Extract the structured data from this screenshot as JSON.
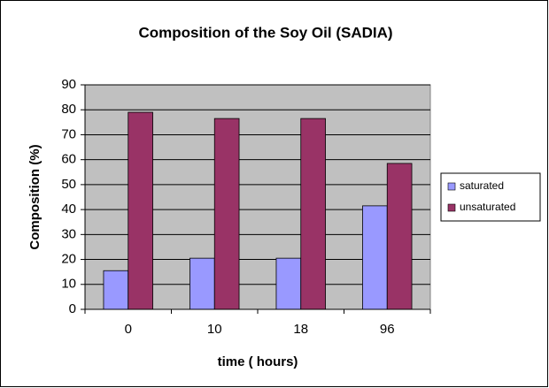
{
  "chart_data": {
    "type": "bar",
    "title": "Composition of the Soy Oil (SADIA)",
    "x_label": "time ( hours)",
    "y_label": "Composition (%)",
    "categories": [
      "0",
      "10",
      "18",
      "96"
    ],
    "series": [
      {
        "name": "saturated",
        "color": "#9999ff",
        "values": [
          15.5,
          20.5,
          20.5,
          41.5
        ]
      },
      {
        "name": "unsaturated",
        "color": "#993366",
        "values": [
          79,
          76.5,
          76.5,
          58.5
        ]
      }
    ],
    "ylim": [
      0,
      90
    ],
    "yticks": [
      0,
      10,
      20,
      30,
      40,
      50,
      60,
      70,
      80,
      90
    ],
    "grid": true,
    "legend": "right"
  }
}
